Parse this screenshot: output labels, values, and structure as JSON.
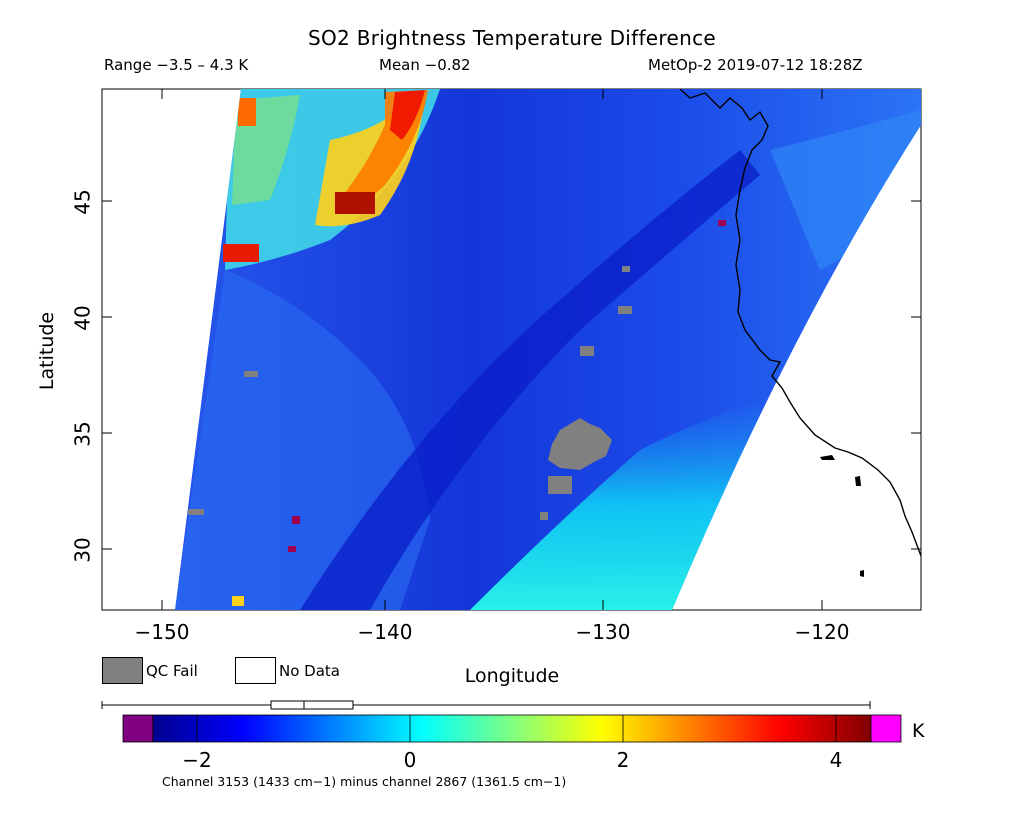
{
  "header": {
    "title": "SO2 Brightness Temperature Difference",
    "range_text": "Range −3.5 – 4.3 K",
    "mean_text": "Mean −0.82",
    "satellite_text": "MetOp-2 2019-07-12 18:28Z"
  },
  "map": {
    "xlabel": "Longitude",
    "ylabel": "Latitude",
    "x_ticks": [
      "−150",
      "−140",
      "−130",
      "−120"
    ],
    "y_ticks": [
      "45",
      "40",
      "35",
      "30"
    ],
    "lon_range": [
      -152.5,
      -115.5
    ],
    "lat_range": [
      27.0,
      49.7
    ],
    "swath_background": "#1f4fe6",
    "qc_fail_color": "#808080",
    "coastline_color": "#000000"
  },
  "legend": {
    "qc_fail_label": "QC Fail",
    "no_data_label": "No Data"
  },
  "colorbar": {
    "unit": "K",
    "ticks": [
      "−2",
      "0",
      "2",
      "4"
    ],
    "tick_values": [
      -2,
      0,
      2,
      4
    ],
    "value_range": [
      -3.5,
      4.3
    ],
    "box_plot": {
      "q1": -1.28,
      "median": -0.84,
      "q3": -0.36
    },
    "underflow_color": "#800080",
    "overflow_color": "#ff00ff",
    "footnote": "Channel 3153 (1433 cm−1) minus channel 2867 (1361.5 cm−1)"
  }
}
